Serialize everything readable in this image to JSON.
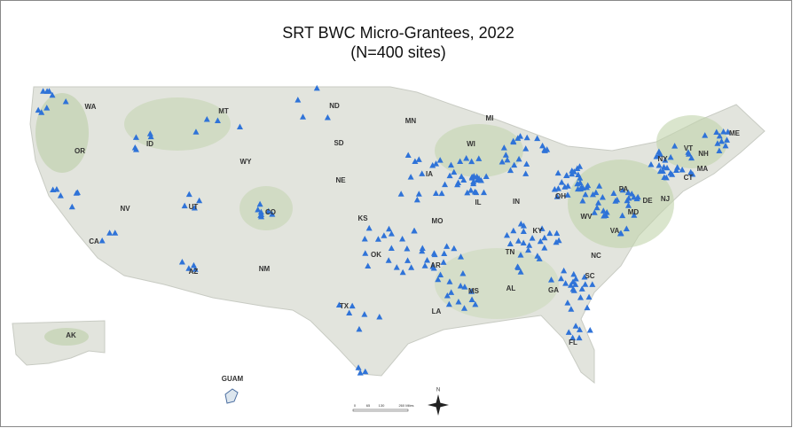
{
  "header": {
    "title": "SRT BWC Micro-Grantees, 2022",
    "subtitle": "(N=400 sites)"
  },
  "map": {
    "state_labels": [
      "WA",
      "MT",
      "ND",
      "MN",
      "MI",
      "OR",
      "ID",
      "SD",
      "WI",
      "WY",
      "NE",
      "IA",
      "NV",
      "UT",
      "CO",
      "KS",
      "MO",
      "IL",
      "IN",
      "OH",
      "PA",
      "NY",
      "VT",
      "NH",
      "ME",
      "MA",
      "CT",
      "NJ",
      "DE",
      "MD",
      "WV",
      "VA",
      "KY",
      "CA",
      "AZ",
      "NM",
      "OK",
      "AR",
      "TN",
      "NC",
      "SC",
      "TX",
      "MS",
      "AL",
      "GA",
      "LA",
      "FL",
      "AK"
    ],
    "inset_label": "GUAM",
    "scale_bar": {
      "labels": [
        "0",
        "65",
        "130",
        "260 Miles"
      ]
    },
    "north_label": "N"
  }
}
